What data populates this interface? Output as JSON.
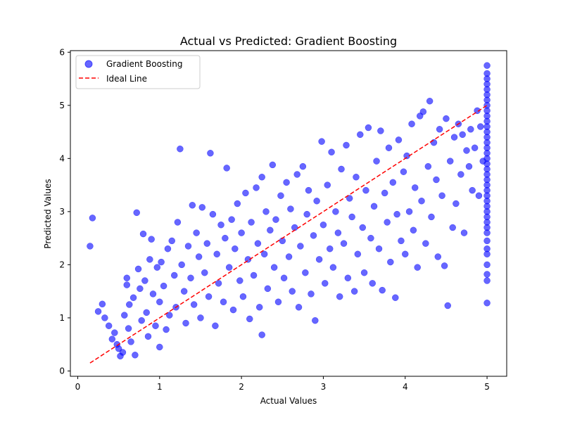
{
  "chart_data": {
    "type": "scatter",
    "title": "Actual vs Predicted: Gradient Boosting",
    "xlabel": "Actual Values",
    "ylabel": "Predicted Values",
    "xlim": [
      -0.09,
      5.24
    ],
    "ylim": [
      -0.1,
      6.03
    ],
    "xticks": [
      0,
      1,
      2,
      3,
      4,
      5
    ],
    "yticks": [
      0,
      1,
      2,
      3,
      4,
      5,
      6
    ],
    "grid": false,
    "legend": {
      "placement": "upper-left",
      "entries": [
        "Gradient Boosting",
        "Ideal Line"
      ]
    },
    "series": [
      {
        "name": "Gradient Boosting",
        "kind": "scatter",
        "color": "#0000ff",
        "alpha": 0.6,
        "points": [
          [
            0.15,
            2.35
          ],
          [
            0.18,
            2.88
          ],
          [
            0.25,
            1.12
          ],
          [
            0.3,
            1.26
          ],
          [
            0.33,
            1.0
          ],
          [
            0.38,
            0.85
          ],
          [
            0.42,
            0.6
          ],
          [
            0.45,
            0.72
          ],
          [
            0.48,
            0.5
          ],
          [
            0.5,
            0.42
          ],
          [
            0.52,
            0.28
          ],
          [
            0.55,
            0.35
          ],
          [
            0.57,
            1.05
          ],
          [
            0.6,
            1.75
          ],
          [
            0.6,
            1.62
          ],
          [
            0.62,
            0.8
          ],
          [
            0.63,
            1.25
          ],
          [
            0.65,
            0.55
          ],
          [
            0.68,
            1.38
          ],
          [
            0.7,
            0.3
          ],
          [
            0.72,
            2.98
          ],
          [
            0.74,
            1.92
          ],
          [
            0.76,
            1.55
          ],
          [
            0.78,
            0.95
          ],
          [
            0.8,
            2.58
          ],
          [
            0.82,
            1.7
          ],
          [
            0.84,
            1.1
          ],
          [
            0.86,
            0.65
          ],
          [
            0.88,
            2.1
          ],
          [
            0.9,
            2.48
          ],
          [
            0.92,
            1.45
          ],
          [
            0.95,
            0.85
          ],
          [
            0.97,
            1.95
          ],
          [
            1.0,
            1.3
          ],
          [
            1.0,
            0.45
          ],
          [
            1.02,
            2.05
          ],
          [
            1.05,
            1.6
          ],
          [
            1.08,
            0.78
          ],
          [
            1.1,
            2.3
          ],
          [
            1.12,
            1.05
          ],
          [
            1.15,
            2.45
          ],
          [
            1.18,
            1.8
          ],
          [
            1.2,
            1.2
          ],
          [
            1.22,
            2.8
          ],
          [
            1.25,
            4.18
          ],
          [
            1.27,
            2.0
          ],
          [
            1.3,
            1.5
          ],
          [
            1.32,
            0.9
          ],
          [
            1.35,
            2.35
          ],
          [
            1.38,
            1.75
          ],
          [
            1.4,
            3.12
          ],
          [
            1.42,
            1.25
          ],
          [
            1.45,
            2.6
          ],
          [
            1.48,
            2.15
          ],
          [
            1.5,
            1.0
          ],
          [
            1.52,
            3.08
          ],
          [
            1.55,
            1.85
          ],
          [
            1.58,
            2.4
          ],
          [
            1.6,
            1.4
          ],
          [
            1.62,
            4.1
          ],
          [
            1.65,
            2.95
          ],
          [
            1.68,
            0.85
          ],
          [
            1.7,
            2.2
          ],
          [
            1.72,
            1.65
          ],
          [
            1.75,
            2.75
          ],
          [
            1.78,
            1.3
          ],
          [
            1.8,
            2.5
          ],
          [
            1.82,
            3.82
          ],
          [
            1.85,
            1.95
          ],
          [
            1.88,
            2.85
          ],
          [
            1.9,
            1.15
          ],
          [
            1.92,
            2.3
          ],
          [
            1.95,
            3.15
          ],
          [
            1.98,
            1.7
          ],
          [
            2.0,
            2.6
          ],
          [
            2.02,
            1.4
          ],
          [
            2.05,
            3.35
          ],
          [
            2.08,
            2.1
          ],
          [
            2.1,
            0.98
          ],
          [
            2.12,
            2.8
          ],
          [
            2.15,
            1.8
          ],
          [
            2.18,
            3.45
          ],
          [
            2.2,
            2.4
          ],
          [
            2.22,
            1.2
          ],
          [
            2.25,
            3.65
          ],
          [
            2.25,
            0.68
          ],
          [
            2.28,
            2.2
          ],
          [
            2.3,
            3.0
          ],
          [
            2.32,
            1.55
          ],
          [
            2.35,
            2.65
          ],
          [
            2.38,
            3.88
          ],
          [
            2.4,
            1.95
          ],
          [
            2.42,
            2.85
          ],
          [
            2.45,
            1.3
          ],
          [
            2.48,
            3.3
          ],
          [
            2.5,
            2.45
          ],
          [
            2.52,
            1.75
          ],
          [
            2.55,
            3.55
          ],
          [
            2.58,
            2.15
          ],
          [
            2.6,
            3.05
          ],
          [
            2.62,
            1.5
          ],
          [
            2.65,
            2.7
          ],
          [
            2.68,
            3.7
          ],
          [
            2.7,
            1.2
          ],
          [
            2.72,
            2.35
          ],
          [
            2.75,
            3.85
          ],
          [
            2.78,
            1.85
          ],
          [
            2.8,
            2.95
          ],
          [
            2.82,
            3.4
          ],
          [
            2.85,
            1.45
          ],
          [
            2.88,
            2.55
          ],
          [
            2.9,
            0.95
          ],
          [
            2.92,
            3.2
          ],
          [
            2.95,
            2.1
          ],
          [
            2.98,
            4.32
          ],
          [
            3.0,
            2.75
          ],
          [
            3.02,
            1.65
          ],
          [
            3.05,
            3.5
          ],
          [
            3.08,
            2.3
          ],
          [
            3.1,
            4.12
          ],
          [
            3.12,
            1.95
          ],
          [
            3.15,
            3.0
          ],
          [
            3.18,
            2.6
          ],
          [
            3.2,
            1.4
          ],
          [
            3.22,
            3.8
          ],
          [
            3.25,
            2.4
          ],
          [
            3.28,
            4.25
          ],
          [
            3.3,
            1.75
          ],
          [
            3.32,
            3.25
          ],
          [
            3.35,
            2.9
          ],
          [
            3.38,
            1.5
          ],
          [
            3.4,
            3.65
          ],
          [
            3.42,
            2.2
          ],
          [
            3.45,
            4.45
          ],
          [
            3.48,
            2.7
          ],
          [
            3.5,
            1.85
          ],
          [
            3.52,
            3.4
          ],
          [
            3.55,
            4.58
          ],
          [
            3.58,
            2.5
          ],
          [
            3.6,
            1.65
          ],
          [
            3.62,
            3.1
          ],
          [
            3.65,
            3.95
          ],
          [
            3.68,
            2.3
          ],
          [
            3.7,
            4.52
          ],
          [
            3.72,
            1.52
          ],
          [
            3.75,
            3.35
          ],
          [
            3.78,
            2.8
          ],
          [
            3.8,
            4.2
          ],
          [
            3.82,
            2.05
          ],
          [
            3.85,
            3.55
          ],
          [
            3.88,
            1.38
          ],
          [
            3.9,
            2.95
          ],
          [
            3.92,
            4.35
          ],
          [
            3.95,
            2.45
          ],
          [
            3.98,
            3.75
          ],
          [
            4.0,
            2.2
          ],
          [
            4.02,
            4.05
          ],
          [
            4.05,
            3.0
          ],
          [
            4.08,
            4.65
          ],
          [
            4.1,
            2.65
          ],
          [
            4.12,
            3.45
          ],
          [
            4.15,
            1.95
          ],
          [
            4.18,
            4.8
          ],
          [
            4.2,
            3.2
          ],
          [
            4.22,
            4.88
          ],
          [
            4.25,
            2.4
          ],
          [
            4.28,
            3.85
          ],
          [
            4.3,
            5.08
          ],
          [
            4.32,
            2.9
          ],
          [
            4.35,
            4.3
          ],
          [
            4.38,
            3.6
          ],
          [
            4.4,
            2.15
          ],
          [
            4.42,
            4.55
          ],
          [
            4.45,
            3.3
          ],
          [
            4.48,
            1.98
          ],
          [
            4.5,
            4.75
          ],
          [
            4.52,
            1.23
          ],
          [
            4.55,
            3.95
          ],
          [
            4.58,
            2.7
          ],
          [
            4.6,
            4.4
          ],
          [
            4.62,
            3.15
          ],
          [
            4.65,
            4.65
          ],
          [
            4.68,
            3.7
          ],
          [
            4.7,
            4.45
          ],
          [
            4.72,
            2.6
          ],
          [
            4.75,
            4.15
          ],
          [
            4.78,
            3.85
          ],
          [
            4.8,
            4.55
          ],
          [
            4.82,
            3.4
          ],
          [
            4.85,
            4.2
          ],
          [
            4.88,
            4.9
          ],
          [
            4.9,
            3.3
          ],
          [
            4.92,
            4.6
          ],
          [
            4.95,
            3.95
          ],
          [
            5.0,
            5.75
          ],
          [
            5.0,
            5.6
          ],
          [
            5.0,
            5.5
          ],
          [
            5.0,
            5.4
          ],
          [
            5.0,
            5.3
          ],
          [
            5.0,
            5.2
          ],
          [
            5.0,
            5.1
          ],
          [
            5.0,
            5.0
          ],
          [
            5.0,
            4.9
          ],
          [
            5.0,
            4.8
          ],
          [
            5.0,
            4.7
          ],
          [
            5.0,
            4.6
          ],
          [
            5.0,
            4.5
          ],
          [
            5.0,
            4.4
          ],
          [
            5.0,
            4.3
          ],
          [
            5.0,
            4.2
          ],
          [
            5.0,
            4.1
          ],
          [
            5.0,
            4.0
          ],
          [
            5.0,
            3.9
          ],
          [
            5.0,
            3.8
          ],
          [
            5.0,
            3.7
          ],
          [
            5.0,
            3.6
          ],
          [
            5.0,
            3.5
          ],
          [
            5.0,
            3.4
          ],
          [
            5.0,
            3.3
          ],
          [
            5.0,
            3.2
          ],
          [
            5.0,
            3.1
          ],
          [
            5.0,
            3.0
          ],
          [
            5.0,
            2.9
          ],
          [
            5.0,
            2.8
          ],
          [
            5.0,
            2.7
          ],
          [
            5.0,
            2.6
          ],
          [
            5.0,
            2.45
          ],
          [
            5.0,
            2.3
          ],
          [
            5.0,
            2.2
          ],
          [
            5.0,
            2.0
          ],
          [
            5.0,
            1.82
          ],
          [
            5.0,
            1.7
          ],
          [
            5.0,
            1.28
          ]
        ]
      },
      {
        "name": "Ideal Line",
        "kind": "line",
        "color": "#ff0000",
        "dashed": true,
        "x": [
          0.15,
          5.0
        ],
        "y": [
          0.15,
          5.0
        ]
      }
    ]
  }
}
